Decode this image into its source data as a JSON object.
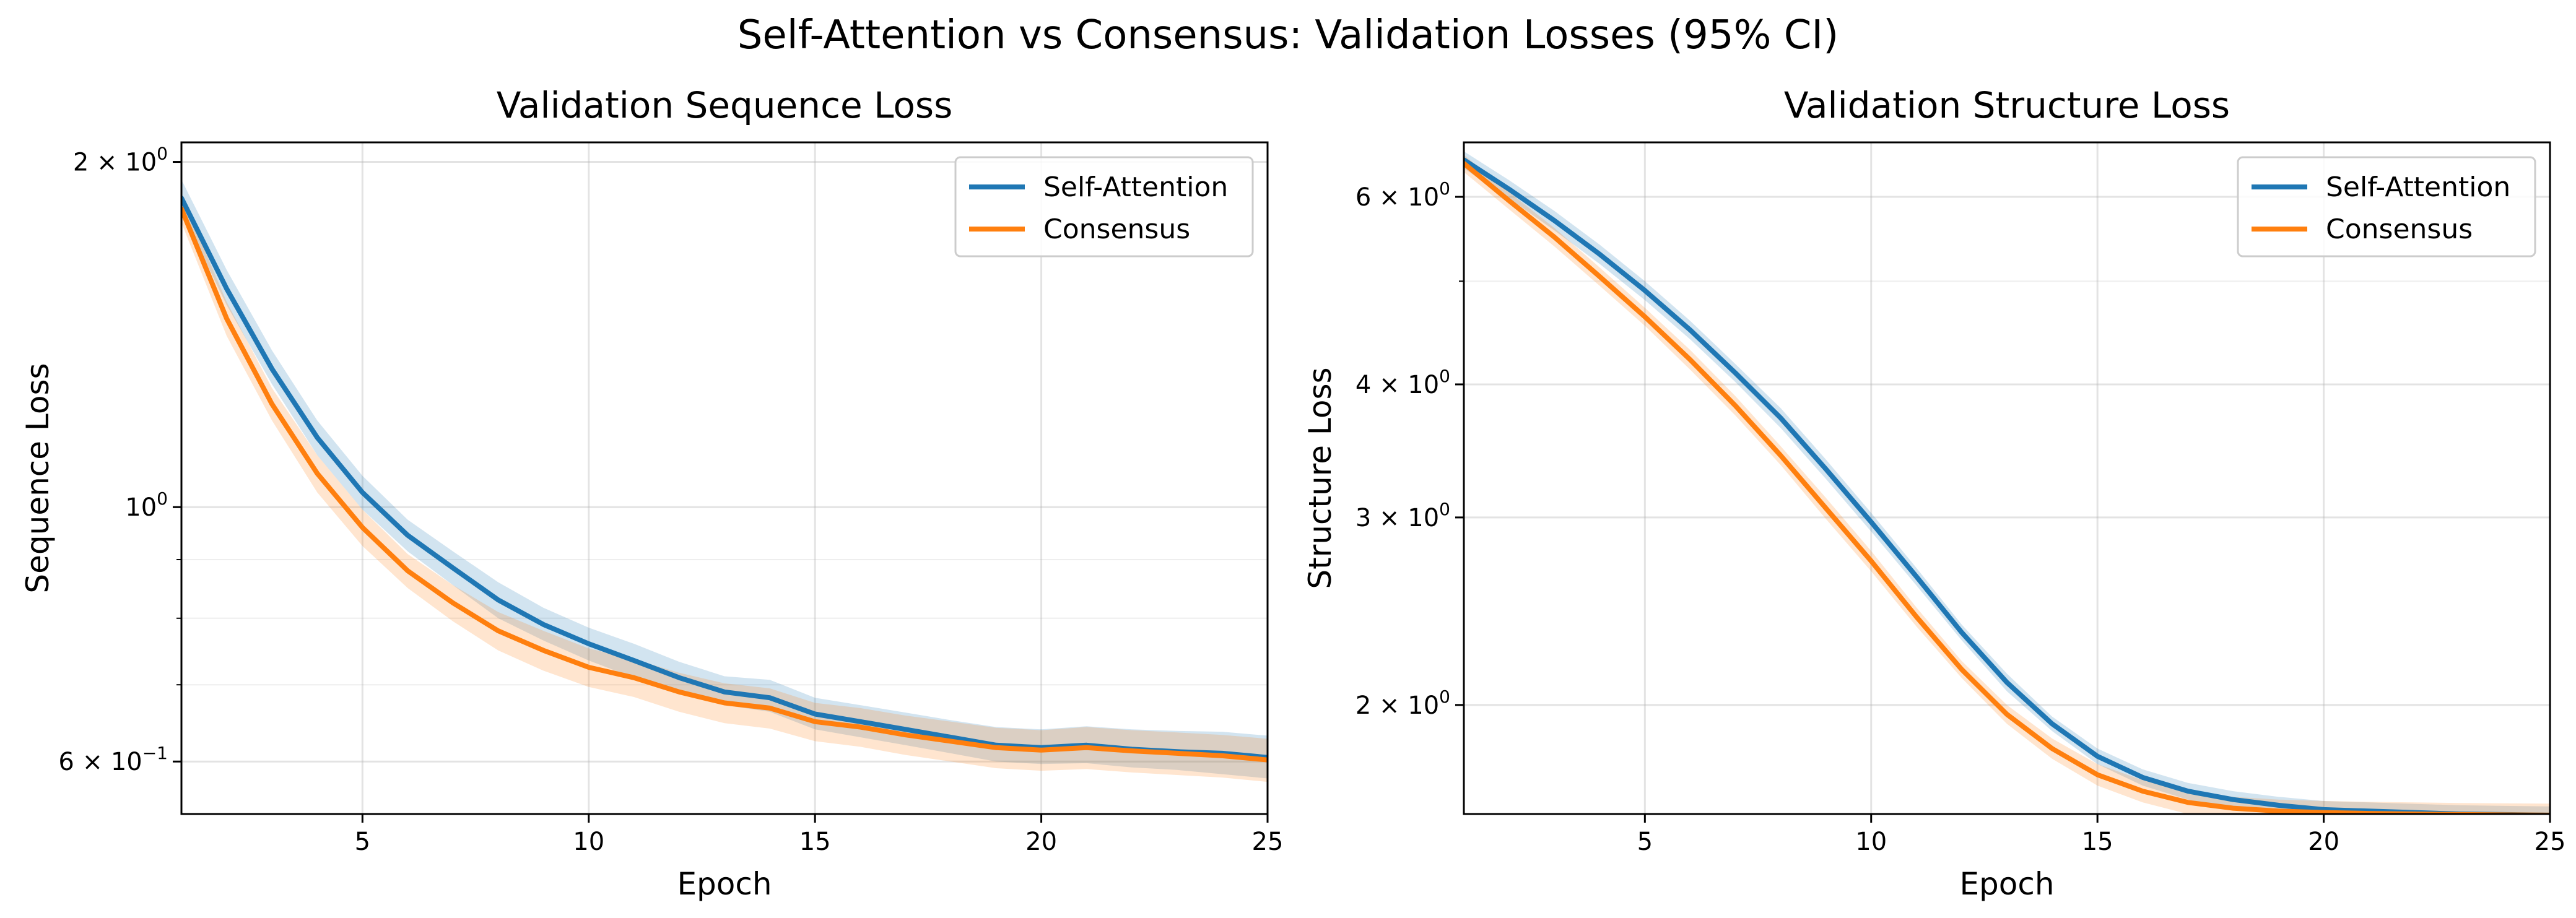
{
  "figure": {
    "suptitle": "Self-Attention vs Consensus: Validation Losses (95% CI)"
  },
  "colors": {
    "self_attention": "#1f77b4",
    "consensus": "#ff7f0e"
  },
  "chart_data": [
    {
      "type": "line",
      "title": "Validation Sequence Loss",
      "xlabel": "Epoch",
      "ylabel": "Sequence Loss",
      "yscale": "log",
      "xlim": [
        1,
        25
      ],
      "ylim": [
        0.54,
        2.08
      ],
      "grid": true,
      "legend_position": "upper right",
      "xticks": [
        5,
        10,
        15,
        20,
        25
      ],
      "xtick_labels": [
        "5",
        "10",
        "15",
        "20",
        "25"
      ],
      "yticks": [
        {
          "value": 2,
          "mantissa": "2 × 10",
          "exp": "0"
        },
        {
          "value": 1,
          "mantissa": "10",
          "exp": "0"
        },
        {
          "value": 0.6,
          "mantissa": "6 × 10",
          "exp": "−1"
        }
      ],
      "minor_yticks": [
        0.7,
        0.8,
        0.9
      ],
      "x": [
        1,
        2,
        3,
        4,
        5,
        6,
        7,
        8,
        9,
        10,
        11,
        12,
        13,
        14,
        15,
        16,
        17,
        18,
        19,
        20,
        21,
        22,
        23,
        24,
        25
      ],
      "series": [
        {
          "name": "Self-Attention",
          "color": "#1f77b4",
          "values": [
            1.86,
            1.55,
            1.32,
            1.15,
            1.03,
            0.945,
            0.885,
            0.83,
            0.79,
            0.76,
            0.735,
            0.71,
            0.69,
            0.682,
            0.66,
            0.65,
            0.64,
            0.63,
            0.62,
            0.617,
            0.62,
            0.615,
            0.612,
            0.61,
            0.605
          ],
          "lower": [
            1.81,
            1.5,
            1.28,
            1.11,
            0.995,
            0.915,
            0.855,
            0.8,
            0.765,
            0.735,
            0.71,
            0.69,
            0.672,
            0.663,
            0.64,
            0.63,
            0.62,
            0.61,
            0.6,
            0.597,
            0.598,
            0.593,
            0.59,
            0.585,
            0.58
          ],
          "upper": [
            1.93,
            1.61,
            1.37,
            1.19,
            1.065,
            0.975,
            0.915,
            0.86,
            0.817,
            0.785,
            0.76,
            0.733,
            0.712,
            0.707,
            0.682,
            0.672,
            0.662,
            0.652,
            0.643,
            0.64,
            0.644,
            0.64,
            0.638,
            0.637,
            0.632
          ]
        },
        {
          "name": "Consensus",
          "color": "#ff7f0e",
          "values": [
            1.82,
            1.46,
            1.23,
            1.07,
            0.96,
            0.88,
            0.825,
            0.78,
            0.75,
            0.725,
            0.71,
            0.69,
            0.675,
            0.668,
            0.65,
            0.643,
            0.633,
            0.625,
            0.617,
            0.614,
            0.617,
            0.613,
            0.61,
            0.607,
            0.602
          ],
          "lower": [
            1.77,
            1.41,
            1.19,
            1.03,
            0.925,
            0.85,
            0.795,
            0.75,
            0.72,
            0.697,
            0.683,
            0.663,
            0.648,
            0.641,
            0.625,
            0.618,
            0.608,
            0.6,
            0.592,
            0.589,
            0.591,
            0.587,
            0.584,
            0.581,
            0.576
          ],
          "upper": [
            1.87,
            1.51,
            1.27,
            1.11,
            0.995,
            0.91,
            0.855,
            0.81,
            0.78,
            0.753,
            0.737,
            0.717,
            0.702,
            0.695,
            0.675,
            0.668,
            0.658,
            0.65,
            0.642,
            0.639,
            0.643,
            0.639,
            0.636,
            0.633,
            0.628
          ]
        }
      ]
    },
    {
      "type": "line",
      "title": "Validation Structure Loss",
      "xlabel": "Epoch",
      "ylabel": "Structure Loss",
      "yscale": "log",
      "xlim": [
        1,
        25
      ],
      "ylim": [
        1.58,
        6.75
      ],
      "grid": true,
      "legend_position": "upper right",
      "xticks": [
        5,
        10,
        15,
        20,
        25
      ],
      "xtick_labels": [
        "5",
        "10",
        "15",
        "20",
        "25"
      ],
      "yticks": [
        {
          "value": 6,
          "mantissa": "6 × 10",
          "exp": "0"
        },
        {
          "value": 4,
          "mantissa": "4 × 10",
          "exp": "0"
        },
        {
          "value": 3,
          "mantissa": "3 × 10",
          "exp": "0"
        },
        {
          "value": 2,
          "mantissa": "2 × 10",
          "exp": "0"
        }
      ],
      "minor_yticks": [
        5
      ],
      "x": [
        1,
        2,
        3,
        4,
        5,
        6,
        7,
        8,
        9,
        10,
        11,
        12,
        13,
        14,
        15,
        16,
        17,
        18,
        19,
        20,
        21,
        22,
        23,
        24,
        25
      ],
      "series": [
        {
          "name": "Self-Attention",
          "color": "#1f77b4",
          "values": [
            6.5,
            6.1,
            5.7,
            5.3,
            4.9,
            4.5,
            4.1,
            3.72,
            3.33,
            2.97,
            2.64,
            2.34,
            2.1,
            1.92,
            1.79,
            1.71,
            1.66,
            1.63,
            1.61,
            1.595,
            1.59,
            1.585,
            1.58,
            1.578,
            1.576
          ],
          "lower": [
            6.38,
            5.98,
            5.58,
            5.19,
            4.8,
            4.41,
            4.02,
            3.64,
            3.26,
            2.91,
            2.59,
            2.3,
            2.06,
            1.89,
            1.76,
            1.68,
            1.63,
            1.6,
            1.58,
            1.565,
            1.56,
            1.555,
            1.55,
            1.548,
            1.546
          ],
          "upper": [
            6.62,
            6.22,
            5.82,
            5.41,
            5.0,
            4.59,
            4.18,
            3.8,
            3.4,
            3.03,
            2.69,
            2.38,
            2.14,
            1.95,
            1.82,
            1.74,
            1.69,
            1.66,
            1.64,
            1.625,
            1.62,
            1.615,
            1.61,
            1.608,
            1.606
          ]
        },
        {
          "name": "Consensus",
          "color": "#ff7f0e",
          "values": [
            6.45,
            5.95,
            5.5,
            5.05,
            4.63,
            4.22,
            3.82,
            3.43,
            3.06,
            2.73,
            2.42,
            2.16,
            1.96,
            1.82,
            1.72,
            1.66,
            1.62,
            1.6,
            1.59,
            1.585,
            1.582,
            1.58,
            1.578,
            1.577,
            1.576
          ],
          "lower": [
            6.33,
            5.84,
            5.39,
            4.95,
            4.54,
            4.13,
            3.74,
            3.36,
            2.99,
            2.67,
            2.37,
            2.12,
            1.92,
            1.78,
            1.68,
            1.62,
            1.58,
            1.56,
            1.55,
            1.545,
            1.542,
            1.54,
            1.538,
            1.537,
            1.536
          ],
          "upper": [
            6.57,
            6.06,
            5.61,
            5.15,
            4.72,
            4.31,
            3.9,
            3.5,
            3.13,
            2.79,
            2.47,
            2.2,
            2.0,
            1.86,
            1.76,
            1.7,
            1.66,
            1.64,
            1.63,
            1.625,
            1.622,
            1.62,
            1.618,
            1.617,
            1.616
          ]
        }
      ]
    }
  ]
}
